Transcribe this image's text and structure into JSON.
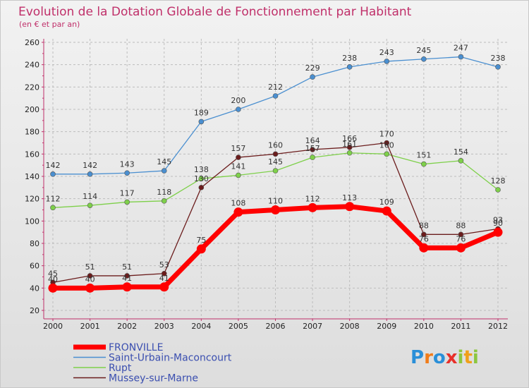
{
  "chart_data": {
    "type": "line",
    "title": "Evolution de la Dotation Globale de Fonctionnement par Habitant",
    "subtitle": "(en € et par an)",
    "categories": [
      "2000",
      "2001",
      "2002",
      "2003",
      "2004",
      "2005",
      "2006",
      "2007",
      "2008",
      "2009",
      "2010",
      "2011",
      "2012"
    ],
    "ylim": [
      20,
      260
    ],
    "yticks": [
      20,
      40,
      60,
      80,
      100,
      120,
      140,
      160,
      180,
      200,
      220,
      240,
      260
    ],
    "grid": true,
    "legend_position": "bottom-left",
    "series": [
      {
        "name": "FRONVILLE",
        "color": "#ff0000",
        "values": [
          40,
          40,
          41,
          41,
          75,
          108,
          110,
          112,
          113,
          109,
          76,
          76,
          90
        ]
      },
      {
        "name": "Saint-Urbain-Maconcourt",
        "color": "#4a8fd0",
        "values": [
          142,
          142,
          143,
          145,
          189,
          200,
          212,
          229,
          238,
          243,
          245,
          247,
          238
        ]
      },
      {
        "name": "Rupt",
        "color": "#7ed04a",
        "values": [
          112,
          114,
          117,
          118,
          138,
          141,
          145,
          157,
          161,
          160,
          151,
          154,
          128
        ]
      },
      {
        "name": "Mussey-sur-Marne",
        "color": "#6b1c1c",
        "values": [
          45,
          51,
          51,
          53,
          130,
          157,
          160,
          164,
          166,
          170,
          88,
          88,
          93
        ]
      }
    ]
  },
  "branding": {
    "logo_letters": [
      "P",
      "r",
      "o",
      "x",
      "i",
      "t",
      "i"
    ],
    "logo_colors": [
      "#2a8fd8",
      "#f07c1a",
      "#2a8fd8",
      "#e8302a",
      "#8cc63f",
      "#f0a01a",
      "#8cc63f"
    ]
  }
}
